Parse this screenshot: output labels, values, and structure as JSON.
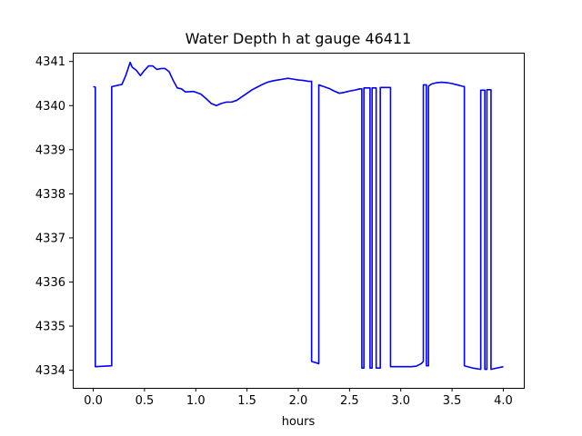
{
  "chart_data": {
    "type": "line",
    "title": "Water Depth h at gauge 46411",
    "xlabel": "hours",
    "ylabel": "",
    "xlim": [
      -0.2,
      4.2
    ],
    "ylim": [
      4333.6,
      4341.2
    ],
    "xticks": [
      0.0,
      0.5,
      1.0,
      1.5,
      2.0,
      2.5,
      3.0,
      3.5,
      4.0
    ],
    "xtick_labels": [
      "0.0",
      "0.5",
      "1.0",
      "1.5",
      "2.0",
      "2.5",
      "3.0",
      "3.5",
      "4.0"
    ],
    "yticks": [
      4334,
      4335,
      4336,
      4337,
      4338,
      4339,
      4340,
      4341
    ],
    "ytick_labels": [
      "4334",
      "4335",
      "4336",
      "4337",
      "4338",
      "4339",
      "4340",
      "4341"
    ],
    "grid": false,
    "legend": "none",
    "series": [
      {
        "color": "#0000ff",
        "x": [
          0.0,
          0.02,
          0.02,
          0.18,
          0.18,
          0.28,
          0.32,
          0.36,
          0.38,
          0.42,
          0.46,
          0.5,
          0.54,
          0.58,
          0.62,
          0.66,
          0.7,
          0.74,
          0.78,
          0.82,
          0.86,
          0.9,
          0.98,
          1.05,
          1.1,
          1.15,
          1.2,
          1.25,
          1.3,
          1.35,
          1.4,
          1.45,
          1.5,
          1.55,
          1.6,
          1.65,
          1.7,
          1.75,
          1.8,
          1.85,
          1.9,
          1.95,
          2.0,
          2.05,
          2.1,
          2.13,
          2.13,
          2.2,
          2.2,
          2.25,
          2.3,
          2.35,
          2.4,
          2.45,
          2.5,
          2.55,
          2.6,
          2.62,
          2.62,
          2.64,
          2.64,
          2.7,
          2.7,
          2.72,
          2.72,
          2.76,
          2.76,
          2.8,
          2.8,
          2.9,
          2.9,
          3.0,
          3.1,
          3.15,
          3.2,
          3.22,
          3.22,
          3.25,
          3.25,
          3.27,
          3.27,
          3.3,
          3.35,
          3.4,
          3.45,
          3.5,
          3.55,
          3.6,
          3.62,
          3.62,
          3.7,
          3.78,
          3.78,
          3.82,
          3.82,
          3.84,
          3.84,
          3.88,
          3.88,
          3.94,
          4.0
        ],
        "y": [
          4340.43,
          4340.42,
          4334.08,
          4334.1,
          4340.43,
          4340.48,
          4340.7,
          4340.98,
          4340.87,
          4340.8,
          4340.68,
          4340.8,
          4340.9,
          4340.9,
          4340.82,
          4340.84,
          4340.84,
          4340.77,
          4340.57,
          4340.4,
          4340.38,
          4340.31,
          4340.32,
          4340.26,
          4340.16,
          4340.05,
          4340.0,
          4340.05,
          4340.08,
          4340.08,
          4340.12,
          4340.2,
          4340.28,
          4340.36,
          4340.42,
          4340.48,
          4340.53,
          4340.56,
          4340.58,
          4340.6,
          4340.62,
          4340.6,
          4340.58,
          4340.57,
          4340.55,
          4340.55,
          4334.2,
          4334.15,
          4340.47,
          4340.43,
          4340.39,
          4340.33,
          4340.28,
          4340.3,
          4340.33,
          4340.35,
          4340.38,
          4340.38,
          4334.05,
          4334.05,
          4340.4,
          4340.4,
          4334.05,
          4334.05,
          4340.4,
          4340.4,
          4334.05,
          4334.05,
          4340.41,
          4340.41,
          4334.08,
          4334.08,
          4334.08,
          4334.09,
          4334.15,
          4334.2,
          4340.47,
          4340.47,
          4334.1,
          4334.1,
          4340.44,
          4340.49,
          4340.52,
          4340.53,
          4340.52,
          4340.5,
          4340.47,
          4340.44,
          4340.43,
          4334.1,
          4334.05,
          4334.02,
          4340.35,
          4340.35,
          4334.02,
          4334.02,
          4340.36,
          4340.36,
          4334.02,
          4334.05,
          4334.08
        ]
      }
    ]
  }
}
